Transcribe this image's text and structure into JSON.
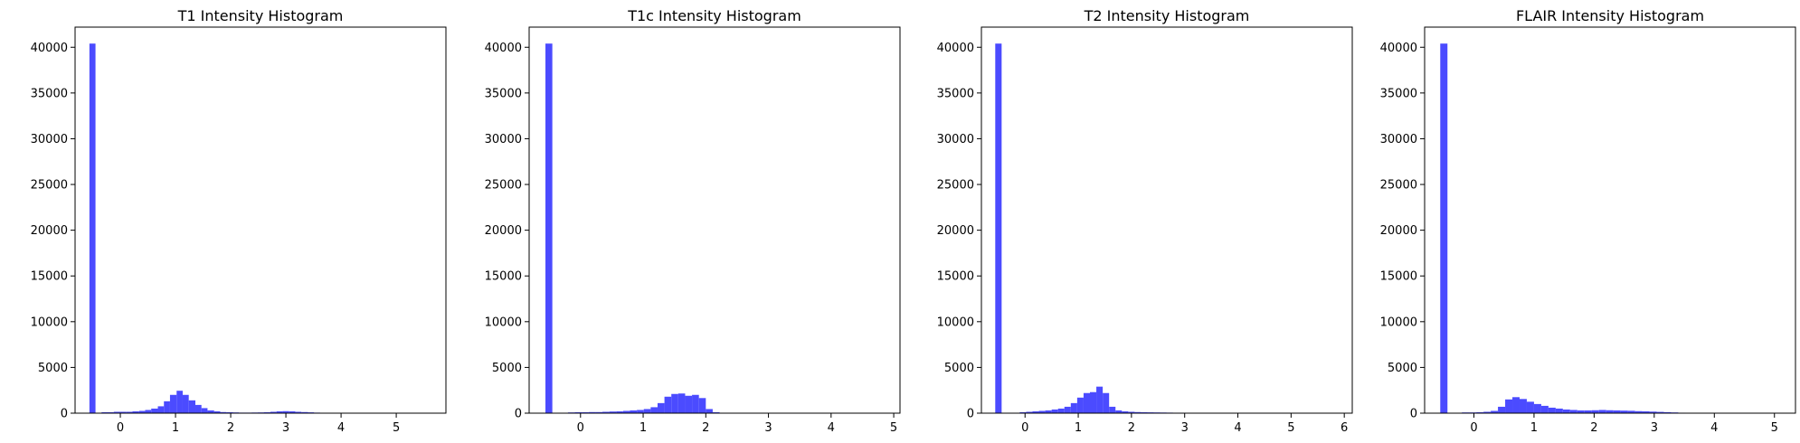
{
  "chart_data": [
    {
      "type": "bar",
      "title": "T1 Intensity Histogram",
      "xlabel": "",
      "ylabel": "",
      "xlim": [
        -0.82,
        5.9
      ],
      "ylim": [
        0,
        42200
      ],
      "xticks": [
        0,
        1,
        2,
        3,
        4,
        5
      ],
      "yticks": [
        0,
        5000,
        10000,
        15000,
        20000,
        25000,
        30000,
        35000,
        40000
      ],
      "grid": false,
      "bar_color": "#4b4bff",
      "bins": [
        {
          "x0": -0.56,
          "x1": -0.45,
          "count": 40400
        },
        {
          "x0": -0.34,
          "x1": -0.23,
          "count": 100
        },
        {
          "x0": -0.23,
          "x1": -0.12,
          "count": 100
        },
        {
          "x0": -0.12,
          "x1": 0.0,
          "count": 150
        },
        {
          "x0": 0.0,
          "x1": 0.11,
          "count": 150
        },
        {
          "x0": 0.11,
          "x1": 0.22,
          "count": 150
        },
        {
          "x0": 0.22,
          "x1": 0.34,
          "count": 200
        },
        {
          "x0": 0.34,
          "x1": 0.45,
          "count": 250
        },
        {
          "x0": 0.45,
          "x1": 0.56,
          "count": 350
        },
        {
          "x0": 0.56,
          "x1": 0.68,
          "count": 500
        },
        {
          "x0": 0.68,
          "x1": 0.79,
          "count": 750
        },
        {
          "x0": 0.79,
          "x1": 0.9,
          "count": 1300
        },
        {
          "x0": 0.9,
          "x1": 1.02,
          "count": 2000
        },
        {
          "x0": 1.02,
          "x1": 1.13,
          "count": 2450
        },
        {
          "x0": 1.13,
          "x1": 1.24,
          "count": 2000
        },
        {
          "x0": 1.24,
          "x1": 1.36,
          "count": 1400
        },
        {
          "x0": 1.36,
          "x1": 1.47,
          "count": 900
        },
        {
          "x0": 1.47,
          "x1": 1.58,
          "count": 550
        },
        {
          "x0": 1.58,
          "x1": 1.7,
          "count": 300
        },
        {
          "x0": 1.7,
          "x1": 1.81,
          "count": 200
        },
        {
          "x0": 1.81,
          "x1": 1.92,
          "count": 120
        },
        {
          "x0": 1.92,
          "x1": 2.04,
          "count": 100
        },
        {
          "x0": 2.04,
          "x1": 2.15,
          "count": 80
        },
        {
          "x0": 2.15,
          "x1": 2.26,
          "count": 60
        },
        {
          "x0": 2.26,
          "x1": 2.38,
          "count": 60
        },
        {
          "x0": 2.38,
          "x1": 2.49,
          "count": 70
        },
        {
          "x0": 2.49,
          "x1": 2.6,
          "count": 80
        },
        {
          "x0": 2.6,
          "x1": 2.72,
          "count": 100
        },
        {
          "x0": 2.72,
          "x1": 2.83,
          "count": 150
        },
        {
          "x0": 2.83,
          "x1": 2.94,
          "count": 200
        },
        {
          "x0": 2.94,
          "x1": 3.06,
          "count": 220
        },
        {
          "x0": 3.06,
          "x1": 3.17,
          "count": 200
        },
        {
          "x0": 3.17,
          "x1": 3.28,
          "count": 150
        },
        {
          "x0": 3.28,
          "x1": 3.4,
          "count": 120
        },
        {
          "x0": 3.4,
          "x1": 3.51,
          "count": 90
        },
        {
          "x0": 3.51,
          "x1": 3.62,
          "count": 60
        },
        {
          "x0": 3.62,
          "x1": 3.74,
          "count": 40
        },
        {
          "x0": 3.74,
          "x1": 3.85,
          "count": 20
        }
      ]
    },
    {
      "type": "bar",
      "title": "T1c Intensity Histogram",
      "xlabel": "",
      "ylabel": "",
      "xlim": [
        -0.82,
        5.1
      ],
      "ylim": [
        0,
        42200
      ],
      "xticks": [
        0,
        1,
        2,
        3,
        4,
        5
      ],
      "yticks": [
        0,
        5000,
        10000,
        15000,
        20000,
        25000,
        30000,
        35000,
        40000
      ],
      "grid": false,
      "bar_color": "#4b4bff",
      "bins": [
        {
          "x0": -0.56,
          "x1": -0.45,
          "count": 40400
        },
        {
          "x0": -0.2,
          "x1": -0.09,
          "count": 80
        },
        {
          "x0": -0.09,
          "x1": 0.02,
          "count": 100
        },
        {
          "x0": 0.02,
          "x1": 0.13,
          "count": 100
        },
        {
          "x0": 0.13,
          "x1": 0.24,
          "count": 120
        },
        {
          "x0": 0.24,
          "x1": 0.35,
          "count": 120
        },
        {
          "x0": 0.35,
          "x1": 0.46,
          "count": 150
        },
        {
          "x0": 0.46,
          "x1": 0.57,
          "count": 180
        },
        {
          "x0": 0.57,
          "x1": 0.68,
          "count": 200
        },
        {
          "x0": 0.68,
          "x1": 0.79,
          "count": 250
        },
        {
          "x0": 0.79,
          "x1": 0.9,
          "count": 300
        },
        {
          "x0": 0.9,
          "x1": 1.01,
          "count": 350
        },
        {
          "x0": 1.01,
          "x1": 1.12,
          "count": 450
        },
        {
          "x0": 1.12,
          "x1": 1.23,
          "count": 650
        },
        {
          "x0": 1.23,
          "x1": 1.34,
          "count": 1100
        },
        {
          "x0": 1.34,
          "x1": 1.45,
          "count": 1800
        },
        {
          "x0": 1.45,
          "x1": 1.56,
          "count": 2100
        },
        {
          "x0": 1.56,
          "x1": 1.67,
          "count": 2150
        },
        {
          "x0": 1.67,
          "x1": 1.78,
          "count": 1900
        },
        {
          "x0": 1.78,
          "x1": 1.89,
          "count": 2000
        },
        {
          "x0": 1.89,
          "x1": 2.0,
          "count": 1650
        },
        {
          "x0": 2.0,
          "x1": 2.11,
          "count": 450
        },
        {
          "x0": 2.11,
          "x1": 2.22,
          "count": 100
        }
      ]
    },
    {
      "type": "bar",
      "title": "T2 Intensity Histogram",
      "xlabel": "",
      "ylabel": "",
      "xlim": [
        -0.82,
        6.15
      ],
      "ylim": [
        0,
        42200
      ],
      "xticks": [
        0,
        1,
        2,
        3,
        4,
        5,
        6
      ],
      "yticks": [
        0,
        5000,
        10000,
        15000,
        20000,
        25000,
        30000,
        35000,
        40000
      ],
      "grid": false,
      "bar_color": "#4b4bff",
      "bins": [
        {
          "x0": -0.56,
          "x1": -0.44,
          "count": 40400
        },
        {
          "x0": -0.1,
          "x1": 0.02,
          "count": 100
        },
        {
          "x0": 0.02,
          "x1": 0.14,
          "count": 150
        },
        {
          "x0": 0.14,
          "x1": 0.26,
          "count": 200
        },
        {
          "x0": 0.26,
          "x1": 0.38,
          "count": 250
        },
        {
          "x0": 0.38,
          "x1": 0.5,
          "count": 300
        },
        {
          "x0": 0.5,
          "x1": 0.62,
          "count": 400
        },
        {
          "x0": 0.62,
          "x1": 0.74,
          "count": 500
        },
        {
          "x0": 0.74,
          "x1": 0.86,
          "count": 700
        },
        {
          "x0": 0.86,
          "x1": 0.98,
          "count": 1100
        },
        {
          "x0": 0.98,
          "x1": 1.1,
          "count": 1700
        },
        {
          "x0": 1.1,
          "x1": 1.22,
          "count": 2200
        },
        {
          "x0": 1.22,
          "x1": 1.34,
          "count": 2300
        },
        {
          "x0": 1.34,
          "x1": 1.46,
          "count": 2900
        },
        {
          "x0": 1.46,
          "x1": 1.58,
          "count": 2200
        },
        {
          "x0": 1.58,
          "x1": 1.7,
          "count": 700
        },
        {
          "x0": 1.7,
          "x1": 1.82,
          "count": 300
        },
        {
          "x0": 1.82,
          "x1": 1.94,
          "count": 200
        },
        {
          "x0": 1.94,
          "x1": 2.06,
          "count": 150
        },
        {
          "x0": 2.06,
          "x1": 2.18,
          "count": 120
        },
        {
          "x0": 2.18,
          "x1": 2.3,
          "count": 100
        },
        {
          "x0": 2.3,
          "x1": 2.42,
          "count": 90
        },
        {
          "x0": 2.42,
          "x1": 2.54,
          "count": 80
        },
        {
          "x0": 2.54,
          "x1": 2.66,
          "count": 70
        },
        {
          "x0": 2.66,
          "x1": 2.78,
          "count": 60
        },
        {
          "x0": 2.78,
          "x1": 2.9,
          "count": 50
        },
        {
          "x0": 2.9,
          "x1": 3.02,
          "count": 50
        },
        {
          "x0": 3.02,
          "x1": 3.14,
          "count": 40
        },
        {
          "x0": 3.14,
          "x1": 3.26,
          "count": 40
        },
        {
          "x0": 3.26,
          "x1": 3.38,
          "count": 30
        },
        {
          "x0": 3.38,
          "x1": 3.5,
          "count": 30
        },
        {
          "x0": 3.5,
          "x1": 3.62,
          "count": 20
        }
      ]
    },
    {
      "type": "bar",
      "title": "FLAIR Intensity Histogram",
      "xlabel": "",
      "ylabel": "",
      "xlim": [
        -0.82,
        5.35
      ],
      "ylim": [
        0,
        42200
      ],
      "xticks": [
        0,
        1,
        2,
        3,
        4,
        5
      ],
      "yticks": [
        0,
        5000,
        10000,
        15000,
        20000,
        25000,
        30000,
        35000,
        40000
      ],
      "grid": false,
      "bar_color": "#4b4bff",
      "bins": [
        {
          "x0": -0.56,
          "x1": -0.44,
          "count": 40400
        },
        {
          "x0": -0.2,
          "x1": -0.08,
          "count": 80
        },
        {
          "x0": -0.08,
          "x1": 0.04,
          "count": 80
        },
        {
          "x0": 0.04,
          "x1": 0.16,
          "count": 100
        },
        {
          "x0": 0.16,
          "x1": 0.28,
          "count": 150
        },
        {
          "x0": 0.28,
          "x1": 0.4,
          "count": 250
        },
        {
          "x0": 0.4,
          "x1": 0.52,
          "count": 700
        },
        {
          "x0": 0.52,
          "x1": 0.64,
          "count": 1500
        },
        {
          "x0": 0.64,
          "x1": 0.76,
          "count": 1750
        },
        {
          "x0": 0.76,
          "x1": 0.88,
          "count": 1550
        },
        {
          "x0": 0.88,
          "x1": 1.0,
          "count": 1250
        },
        {
          "x0": 1.0,
          "x1": 1.12,
          "count": 1000
        },
        {
          "x0": 1.12,
          "x1": 1.24,
          "count": 800
        },
        {
          "x0": 1.24,
          "x1": 1.36,
          "count": 600
        },
        {
          "x0": 1.36,
          "x1": 1.48,
          "count": 500
        },
        {
          "x0": 1.48,
          "x1": 1.6,
          "count": 400
        },
        {
          "x0": 1.6,
          "x1": 1.72,
          "count": 350
        },
        {
          "x0": 1.72,
          "x1": 1.84,
          "count": 300
        },
        {
          "x0": 1.84,
          "x1": 1.96,
          "count": 300
        },
        {
          "x0": 1.96,
          "x1": 2.08,
          "count": 320
        },
        {
          "x0": 2.08,
          "x1": 2.2,
          "count": 350
        },
        {
          "x0": 2.2,
          "x1": 2.32,
          "count": 320
        },
        {
          "x0": 2.32,
          "x1": 2.44,
          "count": 300
        },
        {
          "x0": 2.44,
          "x1": 2.56,
          "count": 280
        },
        {
          "x0": 2.56,
          "x1": 2.68,
          "count": 260
        },
        {
          "x0": 2.68,
          "x1": 2.8,
          "count": 220
        },
        {
          "x0": 2.8,
          "x1": 2.92,
          "count": 200
        },
        {
          "x0": 2.92,
          "x1": 3.04,
          "count": 170
        },
        {
          "x0": 3.04,
          "x1": 3.16,
          "count": 140
        },
        {
          "x0": 3.16,
          "x1": 3.28,
          "count": 110
        },
        {
          "x0": 3.28,
          "x1": 3.4,
          "count": 80
        },
        {
          "x0": 3.4,
          "x1": 3.52,
          "count": 50
        },
        {
          "x0": 3.52,
          "x1": 3.64,
          "count": 30
        }
      ]
    }
  ]
}
